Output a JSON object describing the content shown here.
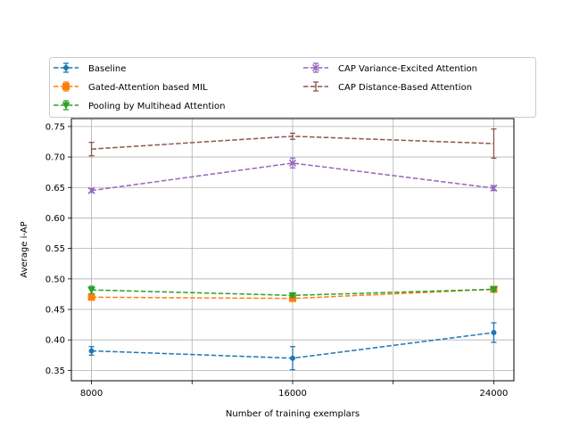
{
  "chart_data": {
    "type": "line",
    "title": "",
    "xlabel": "Number of training exemplars",
    "ylabel": "Average i-AP",
    "x": [
      8000,
      16000,
      24000
    ],
    "xlim": [
      7200,
      24800
    ],
    "ylim": [
      0.333,
      0.763
    ],
    "xticks": [
      8000,
      12000,
      16000,
      20000,
      24000
    ],
    "xtick_labels": [
      "8000",
      "",
      "16000",
      "",
      "24000"
    ],
    "yticks": [
      0.35,
      0.4,
      0.45,
      0.5,
      0.55,
      0.6,
      0.65,
      0.7,
      0.75
    ],
    "ytick_labels": [
      "0.35",
      "0.40",
      "0.45",
      "0.50",
      "0.55",
      "0.60",
      "0.65",
      "0.70",
      "0.75"
    ],
    "grid": true,
    "legend_position": "top",
    "series": [
      {
        "name": "Baseline",
        "color": "#1f77b4",
        "marker": "circle",
        "values": [
          0.382,
          0.37,
          0.412
        ],
        "errors": [
          0.007,
          0.019,
          0.016
        ]
      },
      {
        "name": "Gated-Attention based MIL",
        "color": "#ff7f0e",
        "marker": "square",
        "values": [
          0.47,
          0.468,
          0.483
        ],
        "errors": [
          0.004,
          0.003,
          0.003
        ]
      },
      {
        "name": "Pooling by Multihead Attention",
        "color": "#2ca02c",
        "marker": "triangle-down",
        "values": [
          0.482,
          0.473,
          0.483
        ],
        "errors": [
          0.006,
          0.003,
          0.003
        ]
      },
      {
        "name": "CAP Variance-Excited Attention",
        "color": "#9467bd",
        "marker": "x",
        "values": [
          0.645,
          0.69,
          0.649
        ],
        "errors": [
          0.003,
          0.008,
          0.004
        ]
      },
      {
        "name": "CAP Distance-Based Attention",
        "color": "#8c564b",
        "marker": "none",
        "values": [
          0.713,
          0.734,
          0.722
        ],
        "errors": [
          0.011,
          0.005,
          0.024
        ]
      }
    ]
  }
}
